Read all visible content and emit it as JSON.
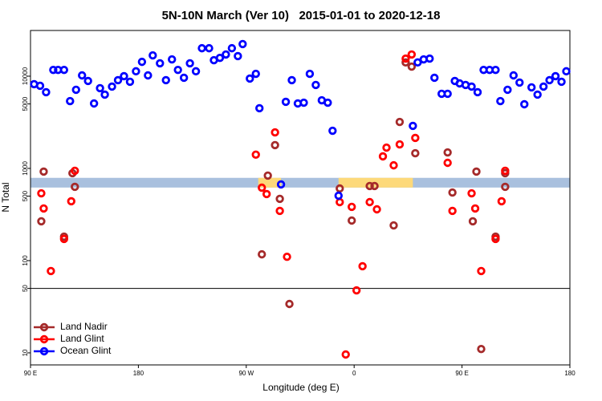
{
  "chart_data": {
    "type": "scatter",
    "title": "5N-10N March (Ver 10)   2015-01-01 to 2020-12-18",
    "x_label": "Longitude (deg E)",
    "y_label": "N Total",
    "xlim": [
      90,
      540
    ],
    "xticks": [
      {
        "value": 90,
        "label": "90 E"
      },
      180,
      {
        "value": 270,
        "label": "90 W"
      },
      {
        "value": 360,
        "label": "0"
      },
      {
        "value": 450,
        "label": "90 E"
      },
      {
        "value": 540,
        "label": "180"
      }
    ],
    "ylim": [
      7.4,
      31300
    ],
    "log_y": true,
    "yticks": [
      10,
      50,
      100,
      500,
      1000,
      5000,
      10000
    ],
    "hline": 50,
    "band": {
      "ylim": [
        620,
        790
      ],
      "color": "#a9c0de"
    },
    "highlights": {
      "color": "#fdd97a",
      "x": [
        [
          280,
          299
        ],
        [
          347,
          409
        ]
      ]
    },
    "legend": "lower left",
    "series": [
      {
        "name": "Land Nadir",
        "color": "#a52a2a",
        "x": [
          101,
          99,
          118,
          125,
          127,
          283,
          288,
          294,
          298,
          306,
          348,
          358,
          373,
          377,
          393,
          398,
          403,
          408,
          411,
          438,
          442,
          462,
          459,
          478,
          486,
          486,
          466
        ],
        "values": [
          923,
          267,
          182,
          887,
          631,
          117,
          836,
          1790,
          468,
          33.9,
          606,
          272,
          644,
          644,
          241,
          3190,
          14100,
          12700,
          1460,
          1490,
          548,
          923,
          267,
          182,
          887,
          631,
          11.0
        ]
      },
      {
        "name": "Land Glint",
        "color": "#ff0000",
        "x": [
          99,
          101,
          107,
          118,
          124,
          127,
          278,
          283,
          287,
          294,
          298,
          304,
          348,
          353,
          358,
          362,
          367,
          373,
          379,
          384,
          387,
          393,
          398,
          403,
          408,
          411,
          438,
          442,
          458,
          461,
          466,
          478,
          483,
          486
        ],
        "values": [
          537,
          368,
          77.1,
          172,
          440,
          942,
          1410,
          618,
          527,
          2460,
          346,
          110,
          431,
          9.6,
          383,
          47.6,
          86.9,
          431,
          360,
          1350,
          1680,
          1080,
          1820,
          15500,
          17200,
          2140,
          1150,
          346,
          537,
          368,
          77.1,
          172,
          440,
          942
        ]
      },
      {
        "name": "Ocean Glint",
        "color": "#0000ff",
        "x": [
          93,
          98,
          103,
          109,
          113,
          118,
          123,
          128,
          133,
          138,
          143,
          148,
          152,
          158,
          163,
          168,
          173,
          178,
          183,
          188,
          192,
          198,
          203,
          208,
          213,
          218,
          223,
          228,
          233,
          239,
          243,
          248,
          253,
          258,
          263,
          267,
          273,
          278,
          281,
          299,
          303,
          308,
          313,
          318,
          323,
          328,
          333,
          338,
          342,
          347,
          409,
          413,
          418,
          423,
          427,
          433,
          438,
          444,
          448,
          453,
          458,
          463,
          468,
          473,
          478,
          482,
          488,
          493,
          498,
          502,
          508,
          513,
          518,
          523,
          528,
          533,
          537
        ],
        "values": [
          8190,
          7870,
          6700,
          11700,
          11700,
          11700,
          5370,
          7120,
          10200,
          8870,
          5060,
          7410,
          6310,
          7710,
          9050,
          10000,
          8700,
          11300,
          14300,
          10200,
          16800,
          13800,
          9050,
          15200,
          11700,
          9610,
          13800,
          11300,
          20100,
          20100,
          14900,
          15800,
          17200,
          20100,
          16500,
          22300,
          9420,
          10600,
          4490,
          670,
          5270,
          9050,
          5060,
          5160,
          10600,
          8030,
          5480,
          5160,
          2560,
          506,
          2890,
          14100,
          15200,
          15500,
          9610,
          6440,
          6440,
          8870,
          8350,
          8030,
          7710,
          6700,
          11700,
          11700,
          11700,
          5370,
          7120,
          10200,
          8520,
          4960,
          7560,
          6310,
          7710,
          9050,
          10000,
          8700,
          11300
        ]
      }
    ]
  }
}
